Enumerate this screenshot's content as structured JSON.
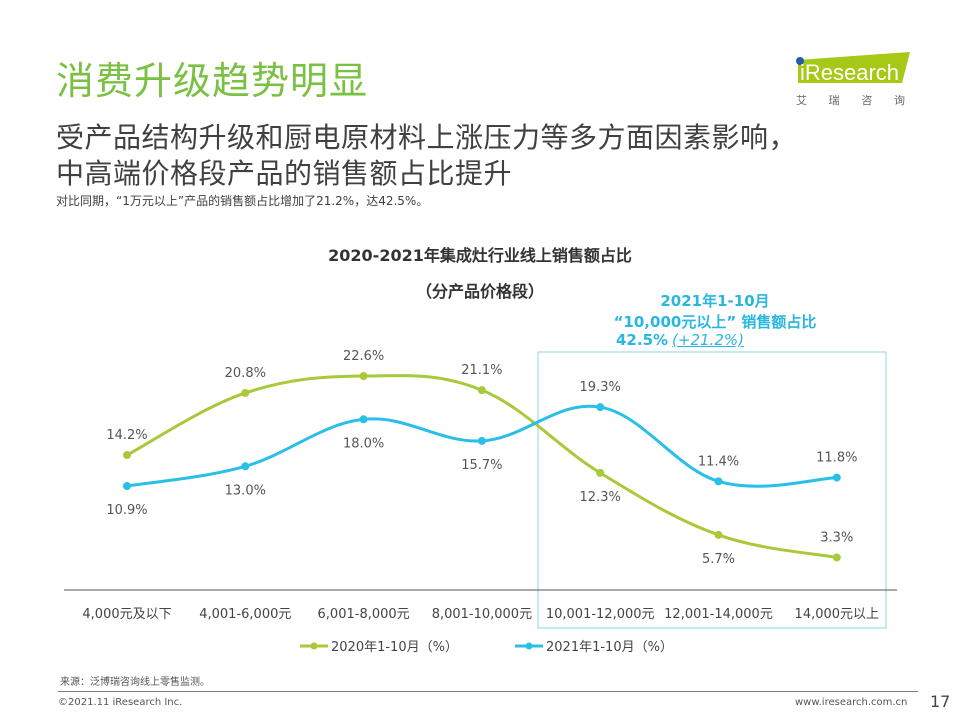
{
  "header": {
    "title": "消费升级趋势明显",
    "subtitle_line1": "受产品结构升级和厨电原材料上涨压力等多方面因素影响，",
    "subtitle_line2": "中高端价格段产品的销售额占比提升",
    "note": "对比同期，“1万元以上”产品的销售额占比增加了21.2%，达42.5%。"
  },
  "logo": {
    "brand": "iResearch",
    "cn_chars": [
      "艾",
      "瑞",
      "咨",
      "询"
    ],
    "brand_color": "#a6c817"
  },
  "callout": {
    "line1": "2021年1-10月",
    "line2": "“10,000元以上” 销售额占比",
    "value": "42.5%",
    "change": "(+21.2%)",
    "color": "#29b6e0"
  },
  "chart_data": {
    "type": "line",
    "title": "2020-2021年集成灶行业线上销售额占比",
    "subtitle": "（分产品价格段）",
    "categories": [
      "4,000元及以下",
      "4,001-6,000元",
      "6,001-8,000元",
      "8,001-10,000元",
      "10,001-12,000元",
      "12,001-14,000元",
      "14,000元以上"
    ],
    "series": [
      {
        "name": "2020年1-10月（%）",
        "color": "#a9c93a",
        "values": [
          14.2,
          20.8,
          22.6,
          21.1,
          12.3,
          5.7,
          3.3
        ],
        "labels": [
          "14.2%",
          "20.8%",
          "22.6%",
          "21.1%",
          "12.3%",
          "5.7%",
          "3.3%"
        ]
      },
      {
        "name": "2021年1-10月（%）",
        "color": "#29bfe8",
        "values": [
          10.9,
          13.0,
          18.0,
          15.7,
          19.3,
          11.4,
          11.8
        ],
        "labels": [
          "10.9%",
          "13.0%",
          "18.0%",
          "15.7%",
          "19.3%",
          "11.4%",
          "11.8%"
        ]
      }
    ],
    "highlight_categories": [
      "10,001-12,000元",
      "12,001-14,000元",
      "14,000元以上"
    ],
    "ylim": [
      0,
      25
    ],
    "grid": false,
    "smooth": true,
    "legend": "bottom-center",
    "xlabel": "",
    "ylabel": ""
  },
  "footer": {
    "source": "来源：泛博瑞咨询线上零售监测。",
    "copyright": "©2021.11 iResearch Inc.",
    "website": "www.iresearch.com.cn",
    "page": "17"
  }
}
